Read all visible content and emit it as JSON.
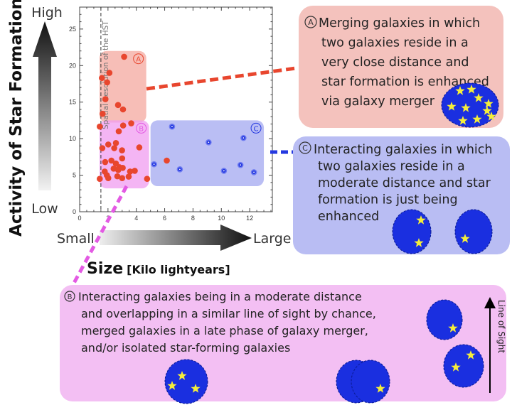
{
  "colors": {
    "red_points": "#e8462e",
    "blue_points": "#2438e0",
    "box_a": "#f4c2bd",
    "box_b": "#f3bff3",
    "box_c": "#b9bdf3",
    "galaxy": "#1a2fe0",
    "star": "#f5ee3a"
  },
  "axes": {
    "y_title": "Activity of Star Formation",
    "y_high": "High",
    "y_low": "Low",
    "x_small": "Small",
    "x_large": "Large",
    "x_title": "Size",
    "x_unit": "[Kilo lightyears]",
    "hst_label": "Spatial Resolution of the HST"
  },
  "chart_data": {
    "type": "scatter",
    "xlim": [
      0,
      13.6
    ],
    "ylim": [
      0,
      28
    ],
    "x_ticks": [
      "0",
      "2",
      "4",
      "6",
      "8",
      "10",
      "12"
    ],
    "y_ticks": [
      "0",
      "5",
      "10",
      "15",
      "20",
      "25"
    ],
    "grid": false,
    "hst_resolution_x": 1.5,
    "regions": [
      {
        "label": "A",
        "x": [
          1.4,
          4.7
        ],
        "y": [
          12.2,
          22.0
        ],
        "color": "#f4a89f"
      },
      {
        "label": "B",
        "x": [
          1.4,
          4.9
        ],
        "y": [
          3.2,
          12.5
        ],
        "color": "#f09cf0"
      },
      {
        "label": "C",
        "x": [
          5.0,
          13.0
        ],
        "y": [
          3.5,
          12.5
        ],
        "color": "#a3a8f0"
      }
    ],
    "series": [
      {
        "marker": "red",
        "points": [
          [
            3.14,
            21.2
          ],
          [
            2.1,
            19.0
          ],
          [
            1.57,
            18.3
          ],
          [
            1.94,
            17.7
          ],
          [
            1.82,
            15.4
          ],
          [
            2.71,
            14.6
          ],
          [
            3.06,
            14.0
          ],
          [
            1.62,
            13.4
          ],
          [
            1.42,
            11.65
          ],
          [
            3.07,
            11.8
          ],
          [
            3.64,
            12.1
          ],
          [
            2.76,
            11.0
          ],
          [
            2.02,
            9.2
          ],
          [
            2.56,
            9.4
          ],
          [
            1.6,
            8.7
          ],
          [
            2.44,
            8.7
          ],
          [
            2.99,
            8.4
          ],
          [
            4.21,
            8.8
          ],
          [
            3.0,
            7.3
          ],
          [
            1.8,
            6.8
          ],
          [
            2.24,
            7.0
          ],
          [
            2.56,
            6.6
          ],
          [
            2.4,
            5.9
          ],
          [
            2.72,
            5.7
          ],
          [
            3.04,
            6.0
          ],
          [
            2.8,
            6.1
          ],
          [
            1.77,
            5.5
          ],
          [
            1.92,
            5.0
          ],
          [
            2.02,
            4.6
          ],
          [
            2.66,
            4.85
          ],
          [
            3.0,
            4.6
          ],
          [
            3.46,
            4.8
          ],
          [
            3.56,
            5.5
          ],
          [
            3.89,
            5.6
          ],
          [
            1.42,
            4.5
          ],
          [
            4.76,
            4.5
          ],
          [
            6.15,
            7.0
          ]
        ]
      },
      {
        "marker": "blue",
        "points": [
          [
            6.52,
            11.65
          ],
          [
            5.25,
            6.5
          ],
          [
            7.07,
            5.8
          ],
          [
            9.1,
            9.5
          ],
          [
            10.18,
            5.6
          ],
          [
            11.35,
            6.4
          ],
          [
            11.56,
            10.1
          ],
          [
            12.3,
            5.4
          ]
        ]
      }
    ]
  },
  "panels": {
    "a": {
      "badge": "A",
      "lines": [
        "Merging galaxies in which",
        "two galaxies reside in a",
        "very close distance and",
        "star formation is enhanced",
        "via galaxy merger"
      ]
    },
    "c": {
      "badge": "C",
      "lines": [
        "Interacting galaxies in which",
        "two galaxies reside in a",
        "moderate distance and star",
        "formation is just being",
        "enhanced"
      ]
    },
    "b": {
      "badge": "B",
      "lines": [
        "Interacting galaxies being in a moderate distance",
        "and overlapping in a similar line of sight by chance,",
        "merged galaxies in a late phase of galaxy merger,",
        "and/or isolated star-forming galaxies"
      ],
      "line_of_sight": "Line of Sight"
    }
  }
}
